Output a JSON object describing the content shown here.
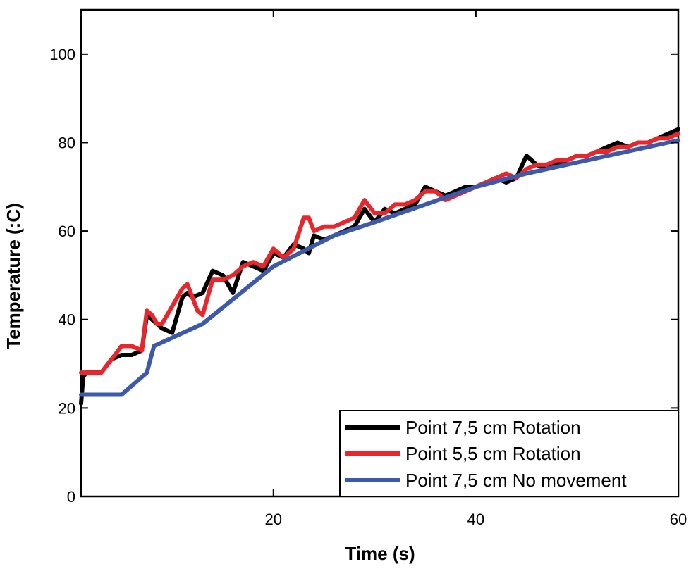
{
  "chart_data": {
    "type": "line",
    "title": "",
    "xlabel": "Time (s)",
    "ylabel": "Temperature (:C)",
    "xlim": [
      1,
      60
    ],
    "ylim": [
      0,
      110
    ],
    "xticks": [
      20,
      40,
      60
    ],
    "yticks": [
      0,
      20,
      40,
      60,
      80,
      100
    ],
    "grid": false,
    "legend_position": "bottom-right",
    "series": [
      {
        "name": "Point 7,5 cm Rotation",
        "color": "#000000",
        "x": [
          1,
          1.2,
          1.5,
          2,
          3,
          4,
          5,
          6,
          7,
          7.5,
          8,
          8.5,
          9,
          10,
          11,
          11.5,
          12,
          13,
          14,
          15,
          15.5,
          16,
          17,
          18,
          19,
          20,
          21,
          22,
          23,
          23.5,
          24,
          25,
          26,
          27,
          28,
          29,
          30,
          31,
          32,
          33,
          34,
          35,
          36,
          37,
          38,
          39,
          40,
          41,
          42,
          43,
          44,
          45,
          46,
          47,
          48,
          49,
          50,
          51,
          52,
          53,
          54,
          55,
          56,
          57,
          58,
          59,
          60
        ],
        "y": [
          21,
          27,
          28,
          28,
          28,
          31,
          32,
          32,
          33,
          41,
          40,
          39,
          38,
          37,
          45,
          46,
          45,
          46,
          51,
          50,
          48,
          46,
          53,
          52,
          51,
          55,
          54,
          57,
          56,
          55,
          59,
          58,
          59,
          60,
          61,
          65,
          62,
          65,
          64,
          65,
          66,
          70,
          69,
          68,
          69,
          70,
          70,
          71,
          72,
          71,
          72,
          77,
          75,
          74,
          75,
          76,
          77,
          77,
          78,
          79,
          80,
          79,
          80,
          80,
          81,
          82,
          83
        ]
      },
      {
        "name": "Point 5,5 cm Rotation",
        "color": "#e8262b",
        "x": [
          1,
          2,
          3,
          4,
          5,
          6,
          7,
          7.5,
          8,
          8.5,
          9,
          10,
          11,
          11.5,
          12,
          12.5,
          13,
          14,
          15,
          16,
          17,
          18,
          19,
          20,
          21,
          22,
          23,
          23.5,
          24,
          25,
          26,
          27,
          28,
          29,
          30,
          31,
          32,
          33,
          34,
          35,
          36,
          37,
          38,
          39,
          40,
          41,
          42,
          43,
          44,
          45,
          46,
          47,
          48,
          49,
          50,
          51,
          52,
          53,
          54,
          55,
          56,
          57,
          58,
          59,
          60
        ],
        "y": [
          28,
          28,
          28,
          31,
          34,
          34,
          33,
          42,
          41,
          39,
          39,
          43,
          47,
          48,
          45,
          42,
          41,
          49,
          49,
          50,
          52,
          53,
          52,
          56,
          54,
          56,
          63,
          63,
          60,
          61,
          61,
          62,
          63,
          67,
          64,
          64,
          66,
          66,
          67,
          69,
          69,
          67,
          68,
          69,
          70,
          71,
          72,
          73,
          72,
          74,
          75,
          75,
          76,
          76,
          77,
          77,
          78,
          78,
          79,
          79,
          80,
          80,
          81,
          81,
          82
        ]
      },
      {
        "name": "Point 7,5 cm No movement",
        "color": "#3d59ab",
        "x": [
          1,
          5,
          7.5,
          8.2,
          13,
          20,
          26,
          30,
          35,
          40,
          45,
          50,
          55,
          60
        ],
        "y": [
          23,
          23,
          28,
          34,
          39,
          52,
          59,
          62,
          66,
          70,
          73,
          75.5,
          78,
          80.5
        ]
      }
    ]
  }
}
